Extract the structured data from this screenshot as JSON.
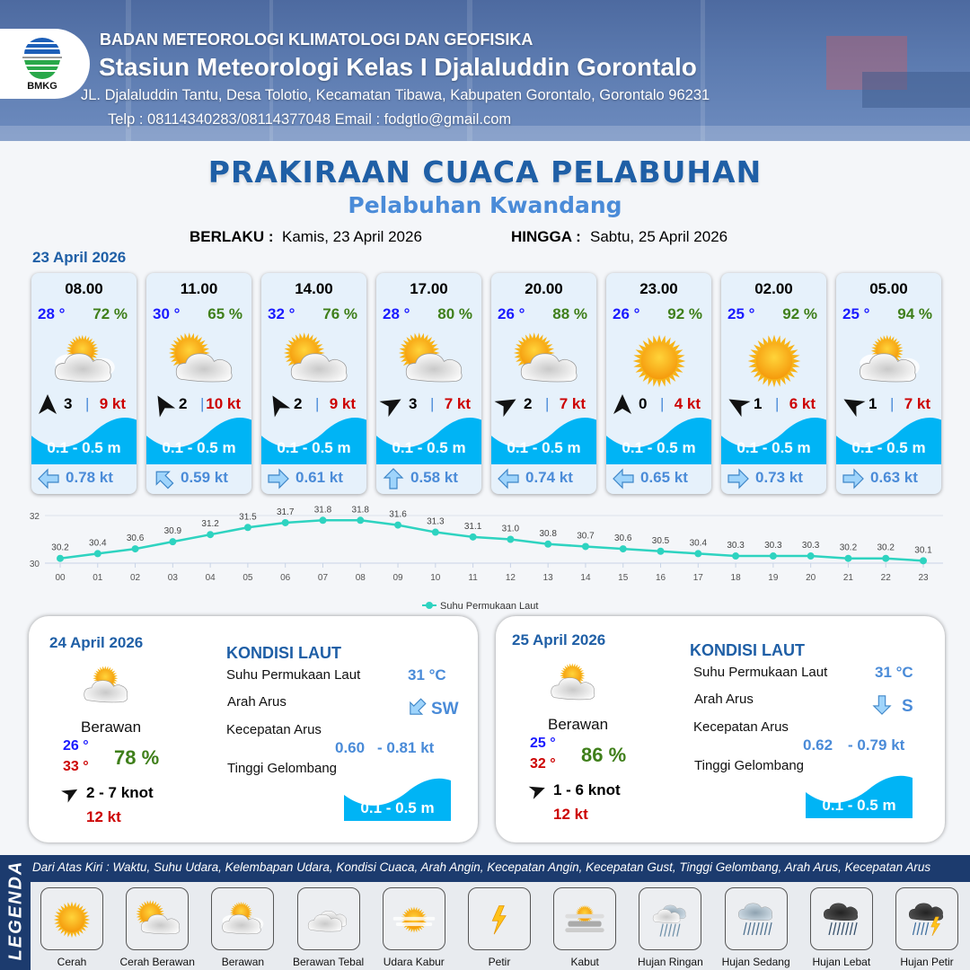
{
  "header": {
    "logo_text": "BMKG",
    "agency": "BADAN METEOROLOGI KLIMATOLOGI DAN GEOFISIKA",
    "station": "Stasiun Meteorologi Kelas I Djalaluddin Gorontalo",
    "address": "JL. Djalaluddin Tantu, Desa Tolotio, Kecamatan Tibawa, Kabupaten Gorontalo, Gorontalo 96231",
    "contact": "Telp : 08114340283/08114377048 Email : fodgtlo@gmail.com"
  },
  "title": "PRAKIRAAN CUACA PELABUHAN",
  "subtitle": "Pelabuhan Kwandang",
  "validity": {
    "from_label": "BERLAKU :",
    "from_value": "Kamis, 23 April 2026",
    "to_label": "HINGGA :",
    "to_value": "Sabtu, 25 April 2026"
  },
  "day1_date": "23 April 2026",
  "colors": {
    "accent": "#1f5fa6",
    "wave": "#00b4f5",
    "temp": "#1a1aff",
    "humidity": "#3f7f1a",
    "gust": "#cc0000",
    "current": "#4a8bd8",
    "sst_line": "#2ed3c0"
  },
  "forecasts": [
    {
      "time": "08.00",
      "temp": "28 °",
      "humidity": "72 %",
      "icon": "berawan",
      "wind_dir_deg": 0,
      "wind_speed": "3",
      "gust": "9 kt",
      "wave": "0.1 - 0.5 m",
      "current_dir": "W",
      "current_speed": "0.78 kt"
    },
    {
      "time": "11.00",
      "temp": "30 °",
      "humidity": "65 %",
      "icon": "cerah-berawan",
      "wind_dir_deg": 330,
      "wind_speed": "2",
      "gust": "10 kt",
      "wave": "0.1 - 0.5 m",
      "current_dir": "NW",
      "current_speed": "0.59 kt"
    },
    {
      "time": "14.00",
      "temp": "32 °",
      "humidity": "76 %",
      "icon": "cerah-berawan",
      "wind_dir_deg": 330,
      "wind_speed": "2",
      "gust": "9 kt",
      "wave": "0.1 - 0.5 m",
      "current_dir": "E",
      "current_speed": "0.61 kt"
    },
    {
      "time": "17.00",
      "temp": "28 °",
      "humidity": "80 %",
      "icon": "cerah-berawan",
      "wind_dir_deg": 60,
      "wind_speed": "3",
      "gust": "7 kt",
      "wave": "0.1 - 0.5 m",
      "current_dir": "N",
      "current_speed": "0.58 kt"
    },
    {
      "time": "20.00",
      "temp": "26 °",
      "humidity": "88 %",
      "icon": "cerah-berawan",
      "wind_dir_deg": 60,
      "wind_speed": "2",
      "gust": "7 kt",
      "wave": "0.1 - 0.5 m",
      "current_dir": "W",
      "current_speed": "0.74 kt"
    },
    {
      "time": "23.00",
      "temp": "26 °",
      "humidity": "92 %",
      "icon": "cerah",
      "wind_dir_deg": 0,
      "wind_speed": "0",
      "gust": "4 kt",
      "wave": "0.1 - 0.5 m",
      "current_dir": "W",
      "current_speed": "0.65 kt"
    },
    {
      "time": "02.00",
      "temp": "25 °",
      "humidity": "92 %",
      "icon": "cerah",
      "wind_dir_deg": 300,
      "wind_speed": "1",
      "gust": "6 kt",
      "wave": "0.1 - 0.5 m",
      "current_dir": "E",
      "current_speed": "0.73 kt"
    },
    {
      "time": "05.00",
      "temp": "25 °",
      "humidity": "94 %",
      "icon": "berawan",
      "wind_dir_deg": 300,
      "wind_speed": "1",
      "gust": "7 kt",
      "wave": "0.1 - 0.5 m",
      "current_dir": "E",
      "current_speed": "0.63 kt"
    }
  ],
  "chart_data": {
    "type": "line",
    "categories": [
      "00",
      "01",
      "02",
      "03",
      "04",
      "05",
      "06",
      "07",
      "08",
      "09",
      "10",
      "11",
      "12",
      "13",
      "14",
      "15",
      "16",
      "17",
      "18",
      "19",
      "20",
      "21",
      "22",
      "23"
    ],
    "series": [
      {
        "name": "Suhu Permukaan Laut",
        "values": [
          30.2,
          30.4,
          30.6,
          30.9,
          31.2,
          31.5,
          31.7,
          31.8,
          31.8,
          31.6,
          31.3,
          31.1,
          31.0,
          30.8,
          30.7,
          30.6,
          30.5,
          30.4,
          30.3,
          30.3,
          30.3,
          30.2,
          30.2,
          30.1
        ]
      }
    ],
    "data_labels": [
      "30.2",
      "30.4",
      "30.6",
      "30.9",
      "31.2",
      "31.5",
      "31.7",
      "31.8",
      "31.8",
      "31.6",
      "31.3",
      "31.1",
      "31.0",
      "30.8",
      "30.7",
      "30.6",
      "30.5",
      "30.4",
      "30.3",
      "30.3",
      "30.3",
      "30.2",
      "30.2",
      "30.1"
    ],
    "yticks": [
      "30",
      "32"
    ],
    "ylim": [
      30,
      32
    ],
    "legend": "bottom",
    "grid": true
  },
  "days": [
    {
      "date": "24 April 2026",
      "icon": "berawan",
      "condition": "Berawan",
      "temp_min": "26 °",
      "temp_max": "33 °",
      "humidity": "78 %",
      "wind_dir_deg": 60,
      "wind_range": "2  - 7 knot",
      "gust": "12 kt",
      "sea_title": "KONDISI LAUT",
      "sst_label": "Suhu Permukaan Laut",
      "sst": "31 °C",
      "cur_dir_label": "Arah Arus",
      "cur_dir": "SW",
      "cur_speed_label": "Kecepatan Arus",
      "cur_speed_min": "0.60",
      "cur_speed_max": "- 0.81 kt",
      "wave_label": "Tinggi Gelombang",
      "wave": "0.1 - 0.5 m"
    },
    {
      "date": "25 April 2026",
      "icon": "berawan",
      "condition": "Berawan",
      "temp_min": "25 °",
      "temp_max": "32 °",
      "humidity": "86 %",
      "wind_dir_deg": 70,
      "wind_range": "1  - 6 knot",
      "gust": "12 kt",
      "sea_title": "KONDISI LAUT",
      "sst_label": "Suhu Permukaan Laut",
      "sst": "31 °C",
      "cur_dir_label": "Arah Arus",
      "cur_dir": "S",
      "cur_speed_label": "Kecepatan Arus",
      "cur_speed_min": "0.62",
      "cur_speed_max": "- 0.79 kt",
      "wave_label": "Tinggi Gelombang",
      "wave": "0.1 - 0.5 m"
    }
  ],
  "legend": {
    "title": "LEGENDA",
    "description": "Dari Atas Kiri : Waktu, Suhu Udara, Kelembapan Udara, Kondisi Cuaca, Arah Angin, Kecepatan Angin, Kecepatan Gust, Tinggi Gelombang, Arah Arus, Kecepatan Arus",
    "items": [
      {
        "label": "Cerah",
        "icon": "cerah"
      },
      {
        "label": "Cerah Berawan",
        "icon": "cerah-berawan"
      },
      {
        "label": "Berawan",
        "icon": "berawan"
      },
      {
        "label": "Berawan Tebal",
        "icon": "berawan-tebal"
      },
      {
        "label": "Udara Kabur",
        "icon": "udara-kabur"
      },
      {
        "label": "Petir",
        "icon": "petir"
      },
      {
        "label": "Kabut",
        "icon": "kabut"
      },
      {
        "label": "Hujan Ringan",
        "icon": "hujan-ringan"
      },
      {
        "label": "Hujan Sedang",
        "icon": "hujan-sedang"
      },
      {
        "label": "Hujan Lebat",
        "icon": "hujan-lebat"
      },
      {
        "label": "Hujan Petir",
        "icon": "hujan-petir"
      }
    ]
  }
}
